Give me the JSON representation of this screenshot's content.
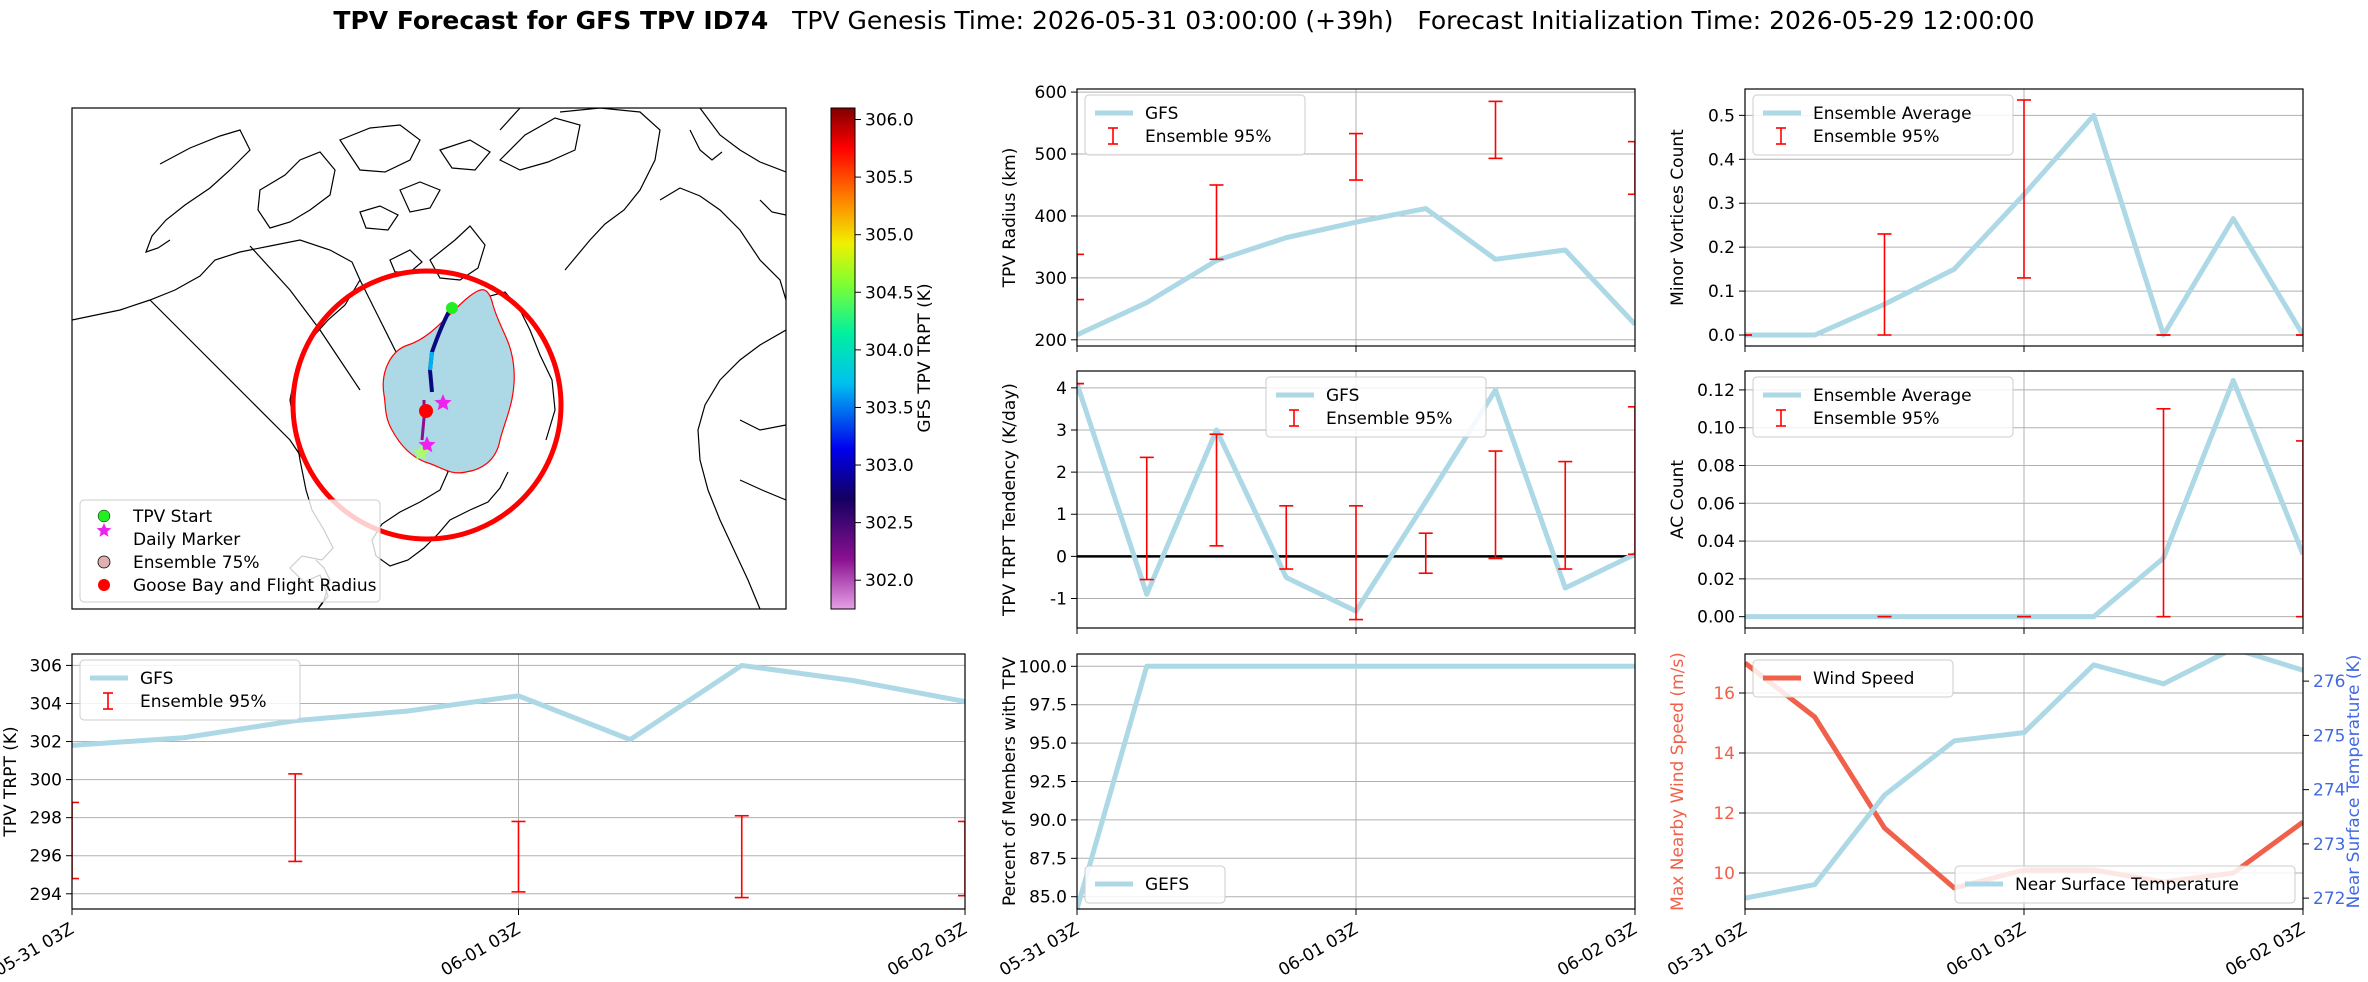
{
  "title": {
    "bold": "TPV Forecast for GFS TPV ID74",
    "genesis": "TPV Genesis Time: 2026-05-31 03:00:00 (+39h)",
    "init": "Forecast Initialization Time: 2026-05-29 12:00:00"
  },
  "colors": {
    "gfs": "#add8e6",
    "errorbar": "#ff0000",
    "wind": "#f0604a",
    "temp_axis": "#4169e1"
  },
  "map": {
    "legend": [
      {
        "label": "TPV Start",
        "marker": "circle",
        "color": "#22ee22"
      },
      {
        "label": "Daily Marker",
        "marker": "star",
        "color": "#ee22ee"
      },
      {
        "label": "Ensemble 75%",
        "marker": "circle",
        "color": "#e0b0b0"
      },
      {
        "label": "Goose Bay and Flight Radius",
        "marker": "circle",
        "color": "#ff0000"
      }
    ],
    "colorbar": {
      "label": "GFS TPV TRPT (K)",
      "ticks": [
        "306.0",
        "305.5",
        "305.0",
        "304.5",
        "304.0",
        "303.5",
        "303.0",
        "302.5",
        "302.0"
      ]
    }
  },
  "chart_data": [
    {
      "id": "radius",
      "type": "line",
      "ylabel": "TPV Radius (km)",
      "ylim": [
        190,
        605
      ],
      "yticks": [
        200,
        300,
        400,
        500,
        600
      ],
      "xlim": [
        0,
        8
      ],
      "xticks": [
        0,
        4,
        8
      ],
      "xticklabels": [],
      "legend": [
        "GFS",
        "Ensemble 95%"
      ],
      "legend_loc": "upper-left",
      "x": [
        0,
        1,
        2,
        3,
        4,
        5,
        6,
        7,
        8
      ],
      "series": [
        {
          "name": "GFS",
          "values": [
            208,
            260,
            328,
            365,
            390,
            412,
            330,
            345,
            225
          ]
        }
      ],
      "errorbars": [
        {
          "x": 0,
          "low": 265,
          "high": 338
        },
        {
          "x": 2,
          "low": 330,
          "high": 450
        },
        {
          "x": 4,
          "low": 458,
          "high": 533
        },
        {
          "x": 6,
          "low": 493,
          "high": 585
        },
        {
          "x": 8,
          "low": 435,
          "high": 520
        }
      ]
    },
    {
      "id": "minor",
      "type": "line",
      "ylabel": "Minor Vortices Count",
      "ylim": [
        -0.025,
        0.56
      ],
      "yticks": [
        0.0,
        0.1,
        0.2,
        0.3,
        0.4,
        0.5
      ],
      "ytick_decimals": 1,
      "xlim": [
        0,
        8
      ],
      "xticks": [
        0,
        4,
        8
      ],
      "xticklabels": [],
      "legend": [
        "Ensemble Average",
        "Ensemble 95%"
      ],
      "legend_loc": "upper-left",
      "x": [
        0,
        1,
        2,
        3,
        4,
        5,
        6,
        7,
        8
      ],
      "series": [
        {
          "name": "Ensemble Average",
          "values": [
            0,
            0,
            0.07,
            0.15,
            0.32,
            0.5,
            0,
            0.265,
            0
          ]
        }
      ],
      "errorbars": [
        {
          "x": 0,
          "low": 0,
          "high": 0
        },
        {
          "x": 2,
          "low": 0,
          "high": 0.23
        },
        {
          "x": 4,
          "low": 0.13,
          "high": 0.535
        },
        {
          "x": 6,
          "low": 0,
          "high": 0
        },
        {
          "x": 8,
          "low": 0,
          "high": 0
        }
      ]
    },
    {
      "id": "tendency",
      "type": "line",
      "ylabel": "TPV TRPT Tendency (K/day)",
      "ylim": [
        -1.7,
        4.4
      ],
      "yticks": [
        -1,
        0,
        1,
        2,
        3,
        4
      ],
      "xlim": [
        0,
        8
      ],
      "xticks": [
        0,
        4,
        8
      ],
      "xticklabels": [],
      "legend": [
        "GFS",
        "Ensemble 95%"
      ],
      "legend_loc": "upper-center",
      "zero_line": true,
      "x": [
        0,
        1,
        2,
        3,
        4,
        5,
        6,
        7,
        8
      ],
      "series": [
        {
          "name": "GFS",
          "values": [
            4.1,
            -0.9,
            3.0,
            -0.5,
            -1.3,
            1.3,
            3.95,
            -0.75,
            0.05
          ]
        }
      ],
      "errorbars": [
        {
          "x": 0,
          "low": 4.1,
          "high": 4.1
        },
        {
          "x": 1,
          "low": -0.55,
          "high": 2.35
        },
        {
          "x": 2,
          "low": 0.25,
          "high": 2.9
        },
        {
          "x": 3,
          "low": -0.3,
          "high": 1.2
        },
        {
          "x": 4,
          "low": -1.5,
          "high": 1.2
        },
        {
          "x": 5,
          "low": -0.4,
          "high": 0.55
        },
        {
          "x": 6,
          "low": -0.05,
          "high": 2.5
        },
        {
          "x": 7,
          "low": -0.3,
          "high": 2.25
        },
        {
          "x": 8,
          "low": 0.05,
          "high": 3.55
        }
      ]
    },
    {
      "id": "ac",
      "type": "line",
      "ylabel": "AC Count",
      "ylim": [
        -0.006,
        0.13
      ],
      "yticks": [
        0.0,
        0.02,
        0.04,
        0.06,
        0.08,
        0.1,
        0.12
      ],
      "ytick_decimals": 2,
      "xlim": [
        0,
        8
      ],
      "xticks": [
        0,
        4,
        8
      ],
      "xticklabels": [],
      "legend": [
        "Ensemble Average",
        "Ensemble 95%"
      ],
      "legend_loc": "upper-left",
      "x": [
        0,
        1,
        2,
        3,
        4,
        5,
        6,
        7,
        8
      ],
      "series": [
        {
          "name": "Ensemble Average",
          "values": [
            0,
            0,
            0,
            0,
            0,
            0,
            0.031,
            0.125,
            0.033
          ]
        }
      ],
      "errorbars": [
        {
          "x": 2,
          "low": 0,
          "high": 0
        },
        {
          "x": 4,
          "low": 0,
          "high": 0
        },
        {
          "x": 6,
          "low": 0,
          "high": 0.11
        },
        {
          "x": 8,
          "low": 0,
          "high": 0.093
        }
      ]
    },
    {
      "id": "trpt",
      "type": "line",
      "ylabel": "TPV TRPT (K)",
      "ylim": [
        293.2,
        306.6
      ],
      "yticks": [
        294,
        296,
        298,
        300,
        302,
        304,
        306
      ],
      "xlim": [
        0,
        8
      ],
      "xticks": [
        0,
        4,
        8
      ],
      "xticklabels": [
        "05-31 03Z",
        "06-01 03Z",
        "06-02 03Z"
      ],
      "legend": [
        "GFS",
        "Ensemble 95%"
      ],
      "legend_loc": "upper-left",
      "x": [
        0,
        1,
        2,
        3,
        4,
        5,
        6,
        7,
        8
      ],
      "series": [
        {
          "name": "GFS",
          "values": [
            301.8,
            302.2,
            303.1,
            303.6,
            304.4,
            302.1,
            306.0,
            305.2,
            304.1
          ]
        }
      ],
      "errorbars": [
        {
          "x": 0,
          "low": 294.8,
          "high": 298.8
        },
        {
          "x": 2,
          "low": 295.7,
          "high": 300.3
        },
        {
          "x": 4,
          "low": 294.1,
          "high": 297.8
        },
        {
          "x": 6,
          "low": 293.8,
          "high": 298.1
        },
        {
          "x": 8,
          "low": 293.9,
          "high": 297.8
        }
      ]
    },
    {
      "id": "percent",
      "type": "line",
      "ylabel": "Percent of Members with TPV",
      "ylim": [
        84.2,
        100.8
      ],
      "yticks": [
        85.0,
        87.5,
        90.0,
        92.5,
        95.0,
        97.5,
        100.0
      ],
      "ytick_decimals": 1,
      "xlim": [
        0,
        8
      ],
      "xticks": [
        0,
        4,
        8
      ],
      "xticklabels": [
        "05-31 03Z",
        "06-01 03Z",
        "06-02 03Z"
      ],
      "legend": [
        "GEFS"
      ],
      "legend_loc": "lower-left",
      "x": [
        0,
        1,
        2,
        3,
        4,
        5,
        6,
        7,
        8
      ],
      "series": [
        {
          "name": "GEFS",
          "values": [
            84.2,
            100,
            100,
            100,
            100,
            100,
            100,
            100,
            100
          ]
        }
      ],
      "errorbars": []
    },
    {
      "id": "wind_temp",
      "type": "line",
      "ylabel": "Max Nearby Wind Speed (m/s)",
      "ylabel_right": "Near Surface Temperature (K)",
      "ylim": [
        8.8,
        17.3
      ],
      "yticks": [
        10,
        12,
        14,
        16
      ],
      "ylim_right": [
        271.8,
        276.5
      ],
      "yticks_right": [
        272,
        273,
        274,
        275,
        276
      ],
      "xlim": [
        0,
        8
      ],
      "xticks": [
        0,
        4,
        8
      ],
      "xticklabels": [
        "05-31 03Z",
        "06-01 03Z",
        "06-02 03Z"
      ],
      "legend": [
        "Wind Speed"
      ],
      "legend_right": [
        "Near Surface Temperature"
      ],
      "x": [
        0,
        1,
        2,
        3,
        4,
        5,
        6,
        7,
        8
      ],
      "series": [
        {
          "name": "Wind Speed",
          "axis": "left",
          "values": [
            17.0,
            15.2,
            11.5,
            9.5,
            10.1,
            10.1,
            9.7,
            10.0,
            11.7
          ]
        },
        {
          "name": "Near Surface Temperature",
          "axis": "right",
          "values": [
            272.0,
            272.25,
            273.9,
            274.9,
            275.05,
            276.3,
            275.95,
            276.6,
            276.2
          ]
        }
      ]
    }
  ]
}
